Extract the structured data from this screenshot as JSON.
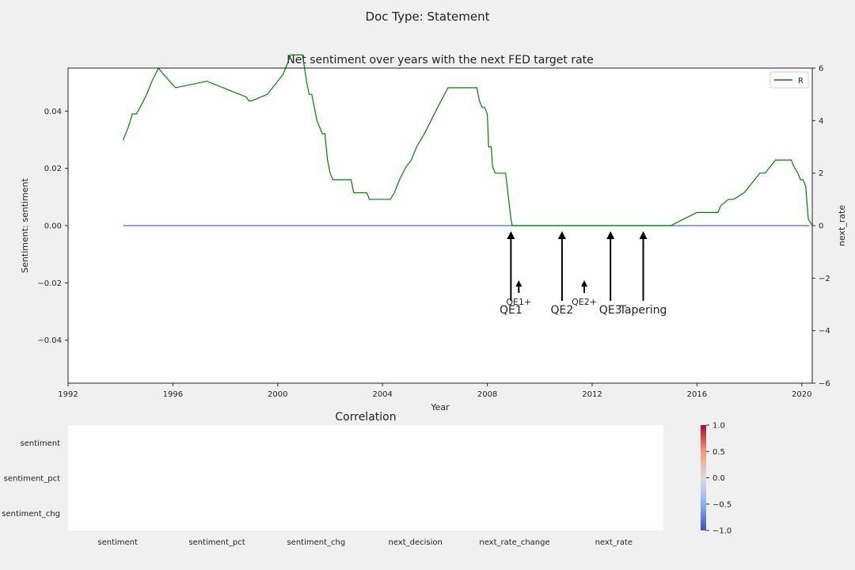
{
  "suptitle": "Doc Type: Statement",
  "chart_data": [
    {
      "type": "line",
      "title": "Net sentiment over years with the next FED target rate",
      "xlabel": "Year",
      "ylabel": "Sentiment: sentiment",
      "y2label": "next_rate",
      "xlim": [
        1992,
        2020.4
      ],
      "ylim": [
        -0.055,
        0.055
      ],
      "y2lim": [
        -6,
        6
      ],
      "x_ticks": [
        "1992",
        "1996",
        "2000",
        "2004",
        "2008",
        "2012",
        "2016",
        "2020"
      ],
      "y_ticks": [
        "0.04",
        "0.02",
        "0.00",
        "−0.02",
        "−0.04"
      ],
      "y2_ticks": [
        "6",
        "4",
        "2",
        "0",
        "−2",
        "−4",
        "−6"
      ],
      "legend": {
        "placement": "top-right",
        "entries": [
          "R"
        ]
      },
      "grid": false,
      "series": [
        {
          "axis": "left",
          "color": "#4c72b0",
          "x": [
            1994.1,
            2020.3
          ],
          "y": [
            0.0,
            0.0
          ]
        },
        {
          "name": "R",
          "axis": "right",
          "color": "#008000",
          "x": [
            1994.1,
            1994.3,
            1994.45,
            1994.6,
            1994.75,
            1995.0,
            1995.2,
            1995.45,
            1995.65,
            1996.1,
            1997.3,
            1998.3,
            1998.8,
            1998.9,
            1999.0,
            1999.6,
            1999.8,
            2000.0,
            2000.2,
            2000.3,
            2000.5,
            2000.7,
            2000.95,
            2001.1,
            2001.2,
            2001.3,
            2001.5,
            2001.7,
            2001.8,
            2001.9,
            2002.0,
            2002.1,
            2002.2,
            2002.8,
            2002.9,
            2003.4,
            2003.5,
            2004.3,
            2004.45,
            2004.65,
            2004.9,
            2005.1,
            2005.3,
            2005.6,
            2006.1,
            2006.5,
            2007.6,
            2007.7,
            2007.8,
            2007.9,
            2008.0,
            2008.05,
            2008.15,
            2008.2,
            2008.3,
            2008.4,
            2008.7,
            2008.9,
            2008.95,
            2015.0,
            2015.5,
            2016.0,
            2016.8,
            2016.9,
            2017.2,
            2017.4,
            2017.8,
            2018.0,
            2018.2,
            2018.4,
            2018.6,
            2018.8,
            2019.0,
            2019.6,
            2019.7,
            2019.85,
            2019.95,
            2020.05,
            2020.15,
            2020.25,
            2020.4
          ],
          "y": [
            3.25,
            3.75,
            4.25,
            4.25,
            4.5,
            5.0,
            5.5,
            6.0,
            5.75,
            5.25,
            5.5,
            5.1,
            4.9,
            4.75,
            4.75,
            5.0,
            5.25,
            5.5,
            5.75,
            6.0,
            6.5,
            6.5,
            6.5,
            5.5,
            5.0,
            5.0,
            4.0,
            3.5,
            3.5,
            2.5,
            2.0,
            1.75,
            1.75,
            1.75,
            1.25,
            1.25,
            1.0,
            1.0,
            1.25,
            1.75,
            2.25,
            2.5,
            3.0,
            3.5,
            4.5,
            5.25,
            5.25,
            4.75,
            4.5,
            4.5,
            4.25,
            3.0,
            3.0,
            2.25,
            2.0,
            2.0,
            2.0,
            0.25,
            0.0,
            0.0,
            0.25,
            0.5,
            0.5,
            0.75,
            1.0,
            1.0,
            1.25,
            1.5,
            1.75,
            2.0,
            2.0,
            2.25,
            2.5,
            2.5,
            2.25,
            2.0,
            1.75,
            1.75,
            1.5,
            0.25,
            0.0
          ]
        }
      ],
      "annotations": [
        {
          "label": "QE1",
          "x": 2008.9,
          "size": "large"
        },
        {
          "label": "QE1+",
          "x": 2009.2,
          "size": "small"
        },
        {
          "label": "QE2",
          "x": 2010.85,
          "size": "large"
        },
        {
          "label": "QE2+",
          "x": 2011.7,
          "size": "small"
        },
        {
          "label": "QE3",
          "x": 2012.7,
          "size": "large"
        },
        {
          "label": "Tapering",
          "x": 2013.95,
          "size": "large"
        }
      ]
    },
    {
      "type": "heatmap",
      "title": "Correlation",
      "rows": [
        "sentiment",
        "sentiment_pct",
        "sentiment_chg"
      ],
      "columns": [
        "sentiment",
        "sentiment_pct",
        "sentiment_chg",
        "next_decision",
        "next_rate_change",
        "next_rate"
      ],
      "colormap": "coolwarm",
      "vmin": -1.0,
      "vmax": 1.0,
      "colorbar_ticks": [
        "1.0",
        "0.5",
        "0.0",
        "−0.5",
        "−1.0"
      ]
    }
  ]
}
